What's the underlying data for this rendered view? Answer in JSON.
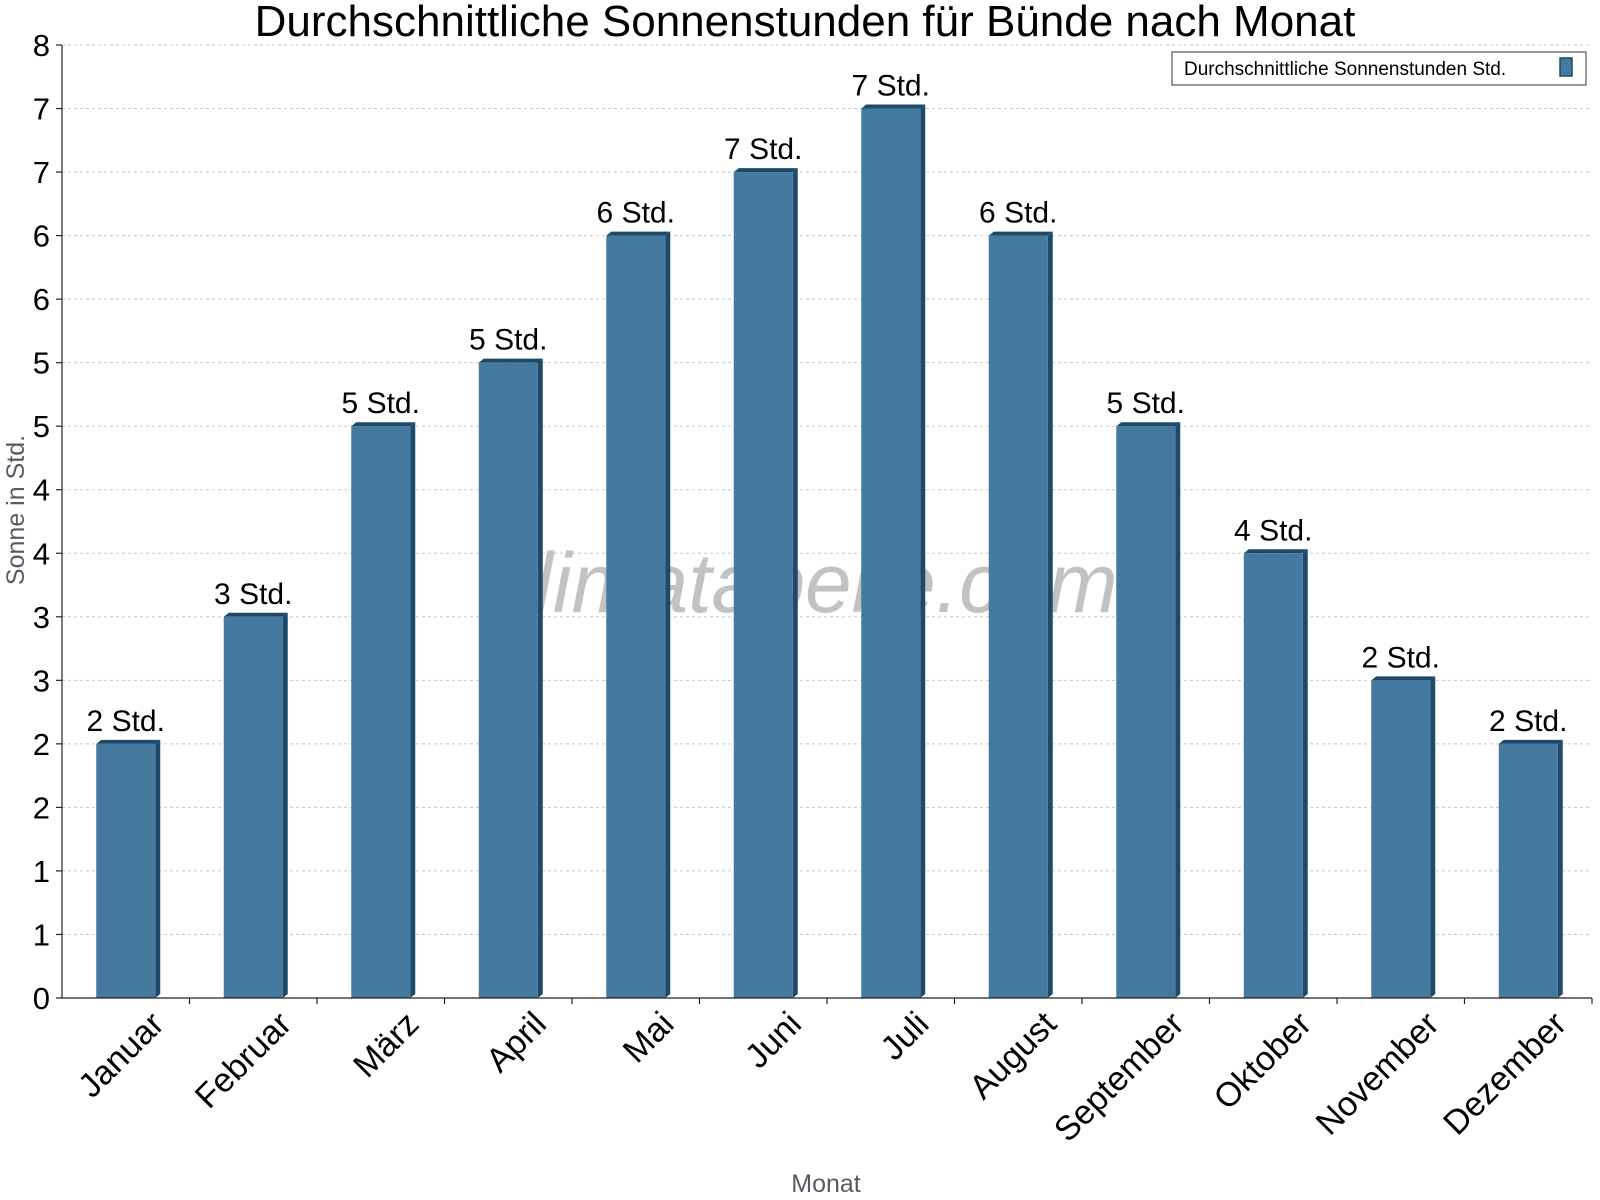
{
  "chart_data": {
    "type": "bar",
    "title": "Durchschnittliche Sonnenstunden für Bünde nach Monat",
    "xlabel": "Monat",
    "ylabel": "Sonne in Std.",
    "categories": [
      "Januar",
      "Februar",
      "März",
      "April",
      "Mai",
      "Juni",
      "Juli",
      "August",
      "September",
      "Oktober",
      "November",
      "Dezember"
    ],
    "series": [
      {
        "name": "Durchschnittliche Sonnenstunden Std.",
        "values": [
          2.0,
          3.0,
          4.5,
          5.0,
          6.0,
          6.5,
          7.0,
          6.0,
          4.5,
          3.5,
          2.5,
          2.0
        ],
        "labels": [
          "2 Std.",
          "3 Std.",
          "5 Std.",
          "5 Std.",
          "6 Std.",
          "7 Std.",
          "7 Std.",
          "6 Std.",
          "5 Std.",
          "4 Std.",
          "2 Std.",
          "2 Std."
        ]
      }
    ],
    "ylim": [
      0,
      7.5
    ],
    "yticks": [
      0,
      0.5,
      1.0,
      1.5,
      2.0,
      2.5,
      3.0,
      3.5,
      4.0,
      4.5,
      5.0,
      5.5,
      6.0,
      6.5,
      7.0,
      7.5
    ],
    "ytick_labels": [
      "0",
      "1",
      "1",
      "2",
      "2",
      "3",
      "3",
      "4",
      "4",
      "5",
      "5",
      "6",
      "6",
      "7",
      "7",
      "8"
    ],
    "grid": true,
    "legend_position": "top-right",
    "bar_color": "#45799d",
    "bar_edge_color": "#1d4a6b",
    "watermark": "klimatabelle.com"
  }
}
